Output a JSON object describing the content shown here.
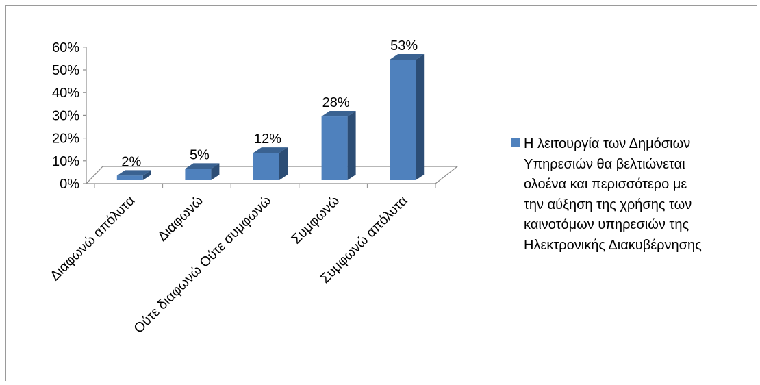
{
  "chart_data": {
    "type": "bar",
    "categories": [
      "Διαφωνώ απόλυτα",
      "Διαφωνώ",
      "Ούτε διαφωνώ Ούτε συμφωνώ",
      "Συμφωνώ",
      "Συμφωνώ απόλυτα"
    ],
    "series": [
      {
        "name": "Η λειτουργία των Δημόσιων\nΥπηρεσιών θα βελτιώνεται\nολοένα και περισσότερο με\nτην αύξηση της χρήσης των\nκαινοτόμων  υπηρεσιών της\nΗλεκτρονικής Διακυβέρνησης",
        "values": [
          2,
          5,
          12,
          28,
          53
        ],
        "data_labels": [
          "2%",
          "5%",
          "12%",
          "28%",
          "53%"
        ]
      }
    ],
    "y_ticks": [
      "0%",
      "10%",
      "20%",
      "30%",
      "40%",
      "50%",
      "60%"
    ],
    "ylim": [
      0,
      60
    ],
    "grid": false,
    "legend_position": "right",
    "colors": {
      "bar_front": "#4f81bd",
      "bar_side": "#2c4d75",
      "bar_top": "#3a6291",
      "axis": "#8c8c8c"
    }
  }
}
